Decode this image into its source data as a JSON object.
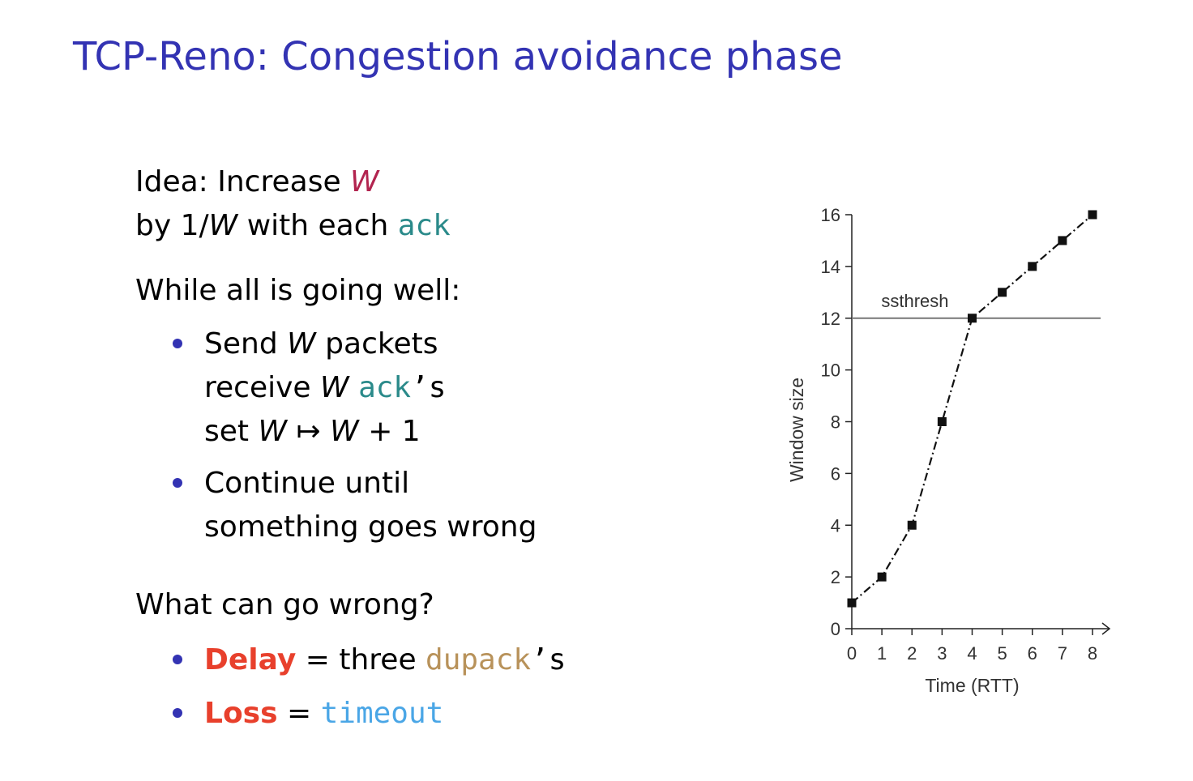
{
  "slide": {
    "title": "TCP-Reno: Congestion avoidance phase"
  },
  "left": {
    "idea_prefix": "Idea: Increase ",
    "idea_w": "W",
    "by_prefix": "by 1/",
    "by_w": "W",
    "by_mid": " with each ",
    "by_ack": "ack",
    "while_text": "While all is going well:",
    "b1_l1_pre": "Send ",
    "b1_l1_w": "W",
    "b1_l1_post": " packets",
    "b1_l2_pre": "receive ",
    "b1_l2_w": "W",
    "b1_l2_ack": "ack",
    "b1_l2_s": "’s",
    "b1_l3_pre": "set ",
    "b1_l3_w1": "W",
    "b1_l3_arrow": " ↦ ",
    "b1_l3_w2": "W",
    "b1_l3_post": " + 1",
    "b2_l1": "Continue until",
    "b2_l2": "something goes wrong",
    "what_text": "What can go wrong?",
    "b3_delay": "Delay",
    "b3_eq": " = three ",
    "b3_dupack": "dupack",
    "b3_s": "’s",
    "b4_loss": "Loss",
    "b4_eq": " = ",
    "b4_timeout": "timeout"
  },
  "chart_data": {
    "type": "line",
    "title": "",
    "xlabel": "Time (RTT)",
    "ylabel": "Window size",
    "x": [
      0,
      1,
      2,
      3,
      4,
      5,
      6,
      7,
      8
    ],
    "series": [
      {
        "values": [
          1,
          2,
          4,
          8,
          12,
          13,
          14,
          15,
          16
        ]
      }
    ],
    "xlim": [
      0,
      8
    ],
    "ylim": [
      0,
      16
    ],
    "xticks": [
      "0",
      "1",
      "2",
      "3",
      "4",
      "5",
      "6",
      "7",
      "8"
    ],
    "yticks": [
      "0",
      "2",
      "4",
      "6",
      "8",
      "10",
      "12",
      "14",
      "16"
    ],
    "threshold": {
      "label": "ssthresh",
      "value": 12
    },
    "grid": false,
    "line_style": "dash-dot",
    "marker": "square"
  }
}
